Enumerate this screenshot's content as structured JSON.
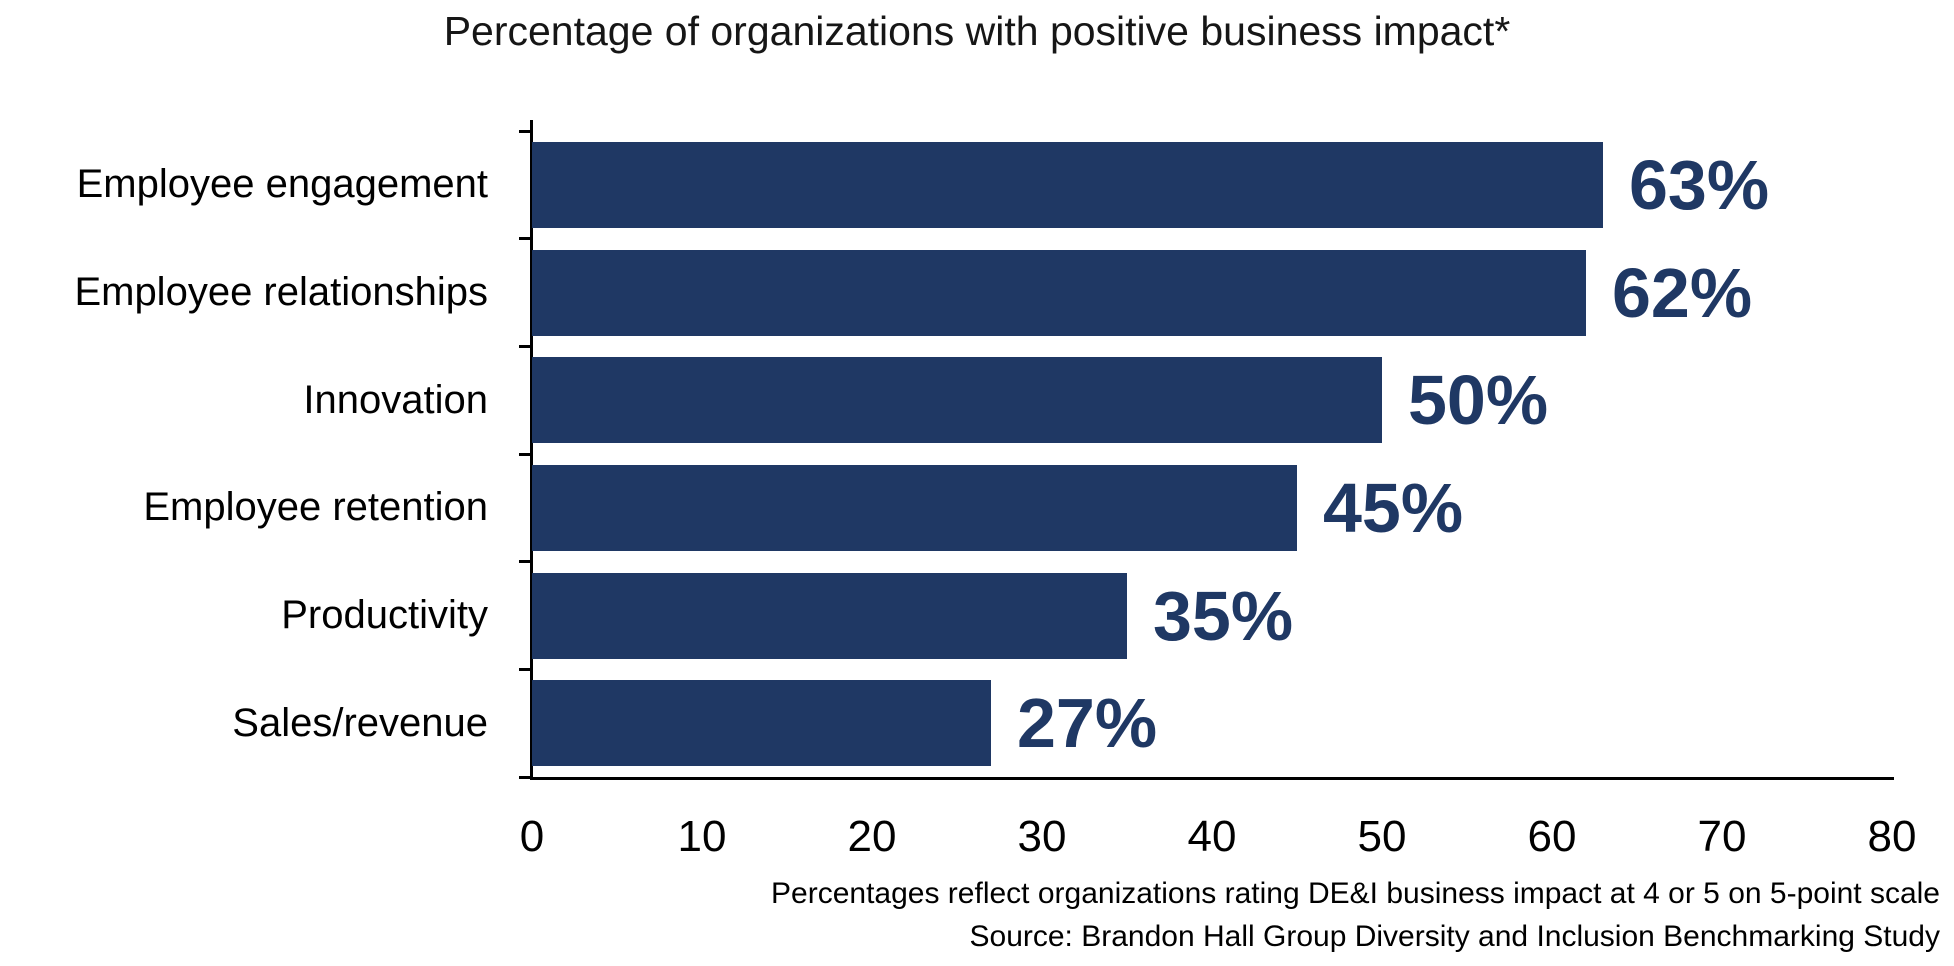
{
  "title": "Percentage of organizations with positive business impact*",
  "chart_data": {
    "type": "bar",
    "orientation": "horizontal",
    "title": "Percentage of organizations with positive business impact*",
    "categories": [
      "Employee engagement",
      "Employee relationships",
      "Innovation",
      "Employee retention",
      "Productivity",
      "Sales/revenue"
    ],
    "values": [
      63,
      62,
      50,
      45,
      35,
      27
    ],
    "value_labels": [
      "63%",
      "62%",
      "50%",
      "45%",
      "35%",
      "27%"
    ],
    "xlabel": "",
    "ylabel": "",
    "xlim": [
      0,
      80
    ],
    "x_ticks": [
      0,
      10,
      20,
      30,
      40,
      50,
      60,
      70,
      80
    ],
    "grid": false,
    "legend": false,
    "bar_color": "#1f3864",
    "value_label_color": "#1f3864",
    "axis_color": "#000000"
  },
  "footnotes": {
    "line1": "Percentages reflect organizations rating DE&I business impact at 4 or 5 on 5-point scale",
    "line2": "Source: Brandon Hall Group Diversity and Inclusion Benchmarking Study"
  }
}
